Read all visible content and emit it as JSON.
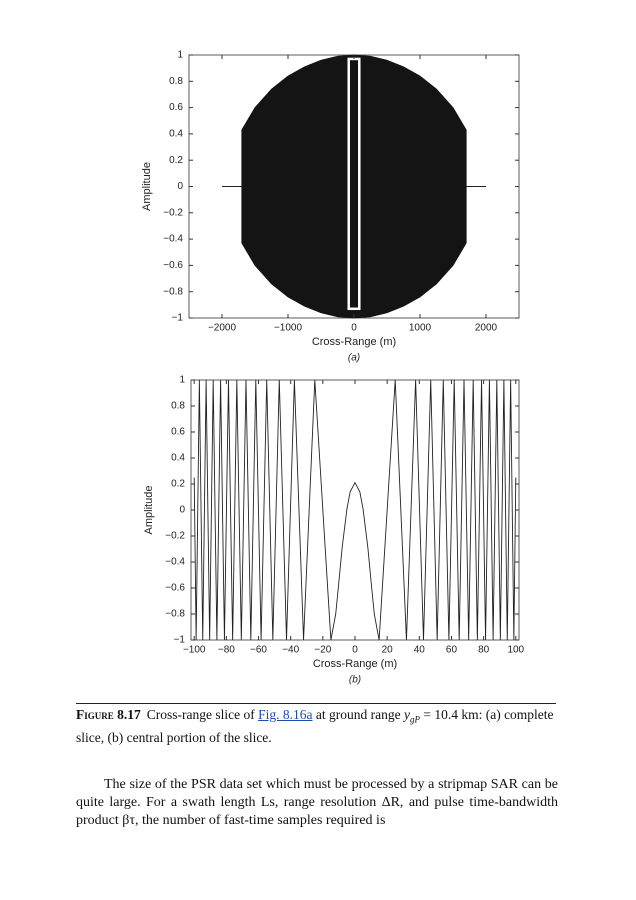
{
  "chart_data": [
    {
      "type": "area",
      "xlabel": "Cross-Range (m)",
      "ylabel": "Amplitude",
      "panel": "(a)",
      "x": [
        -2000,
        -1700,
        -1700,
        -1500,
        -1250,
        -1000,
        -750,
        -500,
        -250,
        0,
        250,
        500,
        750,
        1000,
        1250,
        1500,
        1700,
        1700,
        2000
      ],
      "series": [
        {
          "color": "#141414",
          "values": [
            0,
            0,
            0.43,
            0.6,
            0.74,
            0.84,
            0.91,
            0.96,
            0.99,
            1,
            0.99,
            0.96,
            0.91,
            0.84,
            0.74,
            0.6,
            0.43,
            0,
            0
          ]
        },
        {
          "color": "#141414",
          "values": [
            0,
            0,
            -0.43,
            -0.6,
            -0.74,
            -0.84,
            -0.91,
            -0.96,
            -0.99,
            -1,
            -0.99,
            -0.96,
            -0.91,
            -0.84,
            -0.74,
            -0.6,
            -0.43,
            0,
            0
          ]
        }
      ],
      "xlim": [
        -2500,
        2500
      ],
      "ylim": [
        -1,
        1
      ],
      "xticks": [
        {
          "value": -2000,
          "label": "−2000"
        },
        {
          "value": -1000,
          "label": "−1000"
        },
        0,
        1000,
        2000
      ],
      "yticks": [
        {
          "value": -1,
          "label": "−1"
        },
        {
          "value": -0.8,
          "label": "−0.8"
        },
        {
          "value": -0.6,
          "label": "−0.6"
        },
        {
          "value": -0.4,
          "label": "−0.4"
        },
        {
          "value": -0.2,
          "label": "−0.2"
        },
        0,
        0.2,
        0.4,
        0.6,
        0.8,
        1
      ]
    },
    {
      "type": "line",
      "xlabel": "Cross-Range (m)",
      "ylabel": "Amplitude",
      "panel": "(b)",
      "x": [
        -100,
        -98.8,
        -96.8,
        -94.7,
        -92.6,
        -90.4,
        -88.2,
        -85.9,
        -83.6,
        -81.2,
        -78.7,
        -76.1,
        -73.5,
        -70.7,
        -67.8,
        -64.8,
        -61.7,
        -58.4,
        -54.9,
        -51.1,
        -47.1,
        -42.6,
        -37.7,
        -32,
        -25,
        -15,
        -12,
        -10,
        -8,
        -5,
        -3,
        0,
        3,
        5,
        8,
        10,
        12,
        15,
        25,
        32,
        37.7,
        42.6,
        47.1,
        51.1,
        54.9,
        58.4,
        61.7,
        64.8,
        67.8,
        70.7,
        73.5,
        76.1,
        78.7,
        81.2,
        83.6,
        85.9,
        88.2,
        90.4,
        92.6,
        94.7,
        96.8,
        98.8,
        100
      ],
      "series": [
        {
          "color": "#222222",
          "values": [
            0.25,
            -1,
            1,
            -1,
            1,
            -1,
            1,
            -1,
            1,
            -1,
            1,
            -1,
            1,
            -1,
            1,
            -1,
            1,
            -1,
            1,
            -1,
            1,
            -1,
            1,
            -1,
            1,
            -1,
            -0.8,
            -0.55,
            -0.29,
            0.01,
            0.14,
            0.21,
            0.14,
            0.01,
            -0.29,
            -0.55,
            -0.8,
            -1,
            1,
            -1,
            1,
            -1,
            1,
            -1,
            1,
            -1,
            1,
            -1,
            1,
            -1,
            1,
            -1,
            1,
            -1,
            1,
            -1,
            1,
            -1,
            1,
            -1,
            1,
            -1,
            0.25
          ]
        }
      ],
      "xlim": [
        -102,
        102
      ],
      "ylim": [
        -1,
        1
      ],
      "xticks": [
        {
          "value": -100,
          "label": "−100"
        },
        {
          "value": -80,
          "label": "−80"
        },
        {
          "value": -60,
          "label": "−60"
        },
        {
          "value": -40,
          "label": "−40"
        },
        {
          "value": -20,
          "label": "−20"
        },
        0,
        20,
        40,
        60,
        80,
        100
      ],
      "yticks": [
        {
          "value": -1,
          "label": "−1"
        },
        {
          "value": -0.8,
          "label": "−0.8"
        },
        {
          "value": -0.6,
          "label": "−0.6"
        },
        {
          "value": -0.4,
          "label": "−0.4"
        },
        {
          "value": -0.2,
          "label": "−0.2"
        },
        0,
        0.2,
        0.4,
        0.6,
        0.8,
        1
      ]
    }
  ],
  "caption": {
    "label": "Figure 8.17",
    "text_1": "Cross-range slice of",
    "link": "Fig. 8.16a",
    "text_2": "at ground range",
    "symbol": "y",
    "subscript": "gP",
    "text_3": "= 10.4 km: (a) complete slice, (b) central portion of the slice."
  },
  "body": "The size of the PSR data set which must be processed by a stripmap SAR can be quite large. For a swath length Ls, range resolution ΔR, and pulse time-bandwidth product βτ, the number of fast-time samples required is"
}
